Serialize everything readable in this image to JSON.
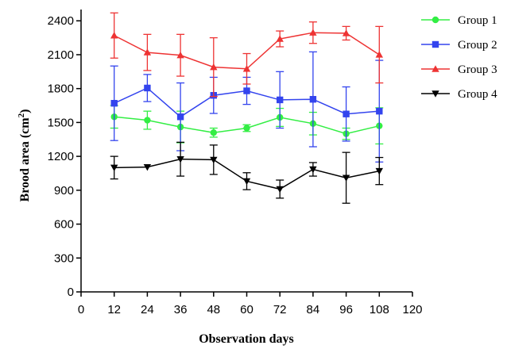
{
  "chart_data": {
    "type": "line",
    "xlabel": "Observation days",
    "ylabel": "Brood area (cm",
    "ylabel_sup": "2",
    "ylabel_end": ")",
    "xlim": [
      0,
      120
    ],
    "ylim": [
      0,
      2500
    ],
    "xticks": [
      0,
      12,
      24,
      36,
      48,
      60,
      72,
      84,
      96,
      108,
      120
    ],
    "yticks": [
      0,
      300,
      600,
      900,
      1200,
      1500,
      1800,
      2100,
      2400
    ],
    "x": [
      12,
      24,
      36,
      48,
      60,
      72,
      84,
      96,
      108
    ],
    "grid": false,
    "legend_position": "top-right",
    "series": [
      {
        "name": "Group 1",
        "color": "#33ee44",
        "marker": "circle",
        "values": [
          1550,
          1520,
          1460,
          1410,
          1450,
          1545,
          1490,
          1400,
          1470
        ],
        "errors": [
          100,
          80,
          140,
          40,
          30,
          80,
          100,
          50,
          160
        ]
      },
      {
        "name": "Group 2",
        "color": "#3344ee",
        "marker": "square",
        "values": [
          1670,
          1805,
          1550,
          1740,
          1780,
          1700,
          1705,
          1575,
          1600
        ],
        "errors": [
          330,
          120,
          300,
          160,
          120,
          250,
          420,
          240,
          450
        ]
      },
      {
        "name": "Group 3",
        "color": "#ee3333",
        "marker": "triangle-up",
        "values": [
          2270,
          2120,
          2095,
          1990,
          1975,
          2240,
          2295,
          2290,
          2100
        ],
        "errors": [
          200,
          160,
          185,
          260,
          135,
          70,
          95,
          60,
          250
        ]
      },
      {
        "name": "Group 4",
        "color": "#000000",
        "marker": "triangle-down",
        "values": [
          1100,
          1105,
          1175,
          1170,
          980,
          910,
          1085,
          1010,
          1070
        ],
        "errors": [
          100,
          0,
          150,
          130,
          75,
          80,
          60,
          225,
          120
        ]
      }
    ]
  }
}
